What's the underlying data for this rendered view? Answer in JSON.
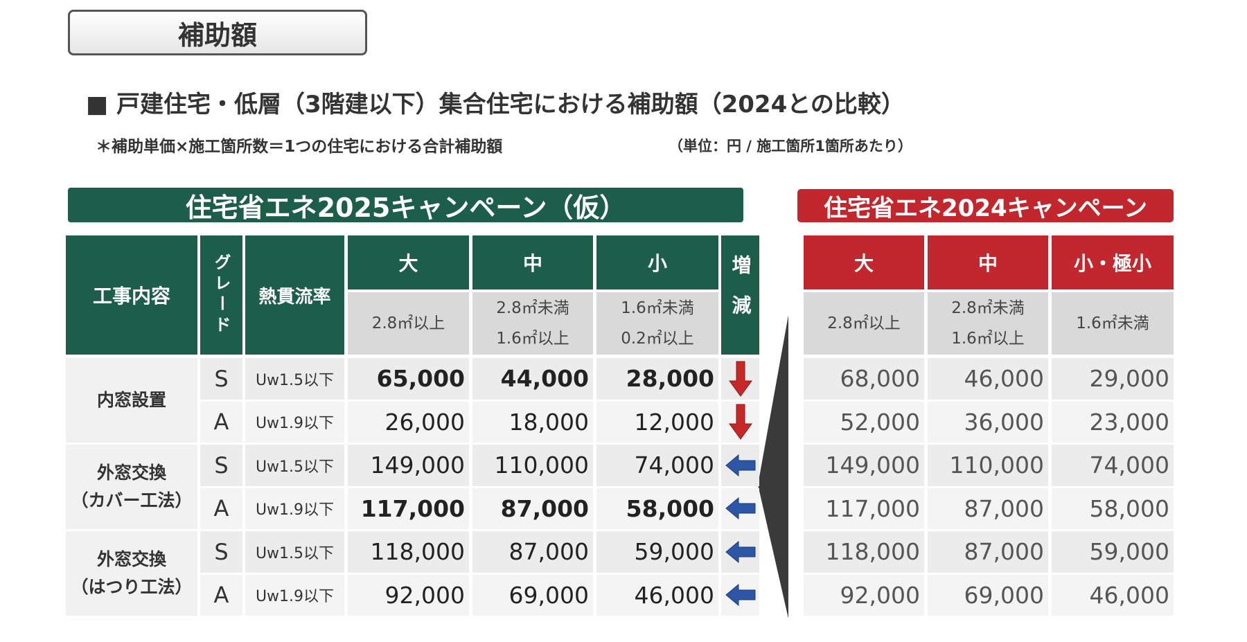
{
  "header": {
    "badge": "補助額",
    "title": "■ 戸建住宅・低層（3階建以下）集合住宅における補助額（2024との比較）",
    "note": "＊補助単価×施工箇所数＝1つの住宅における合計補助額",
    "unit": "（単位：円 / 施工箇所1箇所あたり）"
  },
  "table2025": {
    "title": "住宅省エネ2025キャンペーン（仮）",
    "color": "#1d5e4b",
    "headers": [
      "工事内容",
      "グレード",
      "熱貫流率",
      "大",
      "中",
      "小",
      "増減"
    ],
    "sizes": [
      [
        "2.8㎡以上"
      ],
      [
        "2.8㎡未満",
        "1.6㎡以上"
      ],
      [
        "1.6㎡未満",
        "0.2㎡以上"
      ]
    ],
    "groups": [
      {
        "name": [
          "内窓設置"
        ],
        "rows": [
          {
            "grade": "S",
            "uw": "Uw1.5以下",
            "values": [
              "65,000",
              "44,000",
              "28,000"
            ],
            "trend": "down",
            "emphasis": true
          },
          {
            "grade": "A",
            "uw": "Uw1.9以下",
            "values": [
              "26,000",
              "18,000",
              "12,000"
            ],
            "trend": "down",
            "emphasis": false
          }
        ]
      },
      {
        "name": [
          "外窓交換",
          "（カバー工法）"
        ],
        "rows": [
          {
            "grade": "S",
            "uw": "Uw1.5以下",
            "values": [
              "149,000",
              "110,000",
              "74,000"
            ],
            "trend": "same",
            "emphasis": false
          },
          {
            "grade": "A",
            "uw": "Uw1.9以下",
            "values": [
              "117,000",
              "87,000",
              "58,000"
            ],
            "trend": "same",
            "emphasis": true
          }
        ]
      },
      {
        "name": [
          "外窓交換",
          "（はつり工法）"
        ],
        "rows": [
          {
            "grade": "S",
            "uw": "Uw1.5以下",
            "values": [
              "118,000",
              "87,000",
              "59,000"
            ],
            "trend": "same",
            "emphasis": false
          },
          {
            "grade": "A",
            "uw": "Uw1.9以下",
            "values": [
              "92,000",
              "69,000",
              "46,000"
            ],
            "trend": "same",
            "emphasis": false
          }
        ]
      }
    ]
  },
  "table2024": {
    "title": "住宅省エネ2024キャンペーン",
    "color": "#c1272d",
    "headers": [
      "大",
      "中",
      "小・極小"
    ],
    "sizes": [
      [
        "2.8㎡以上"
      ],
      [
        "2.8㎡未満",
        "1.6㎡以上"
      ],
      [
        "1.6㎡未満"
      ]
    ],
    "rows": [
      [
        "68,000",
        "46,000",
        "29,000"
      ],
      [
        "52,000",
        "36,000",
        "23,000"
      ],
      [
        "149,000",
        "110,000",
        "74,000"
      ],
      [
        "117,000",
        "87,000",
        "58,000"
      ],
      [
        "118,000",
        "87,000",
        "59,000"
      ],
      [
        "92,000",
        "69,000",
        "46,000"
      ]
    ]
  }
}
